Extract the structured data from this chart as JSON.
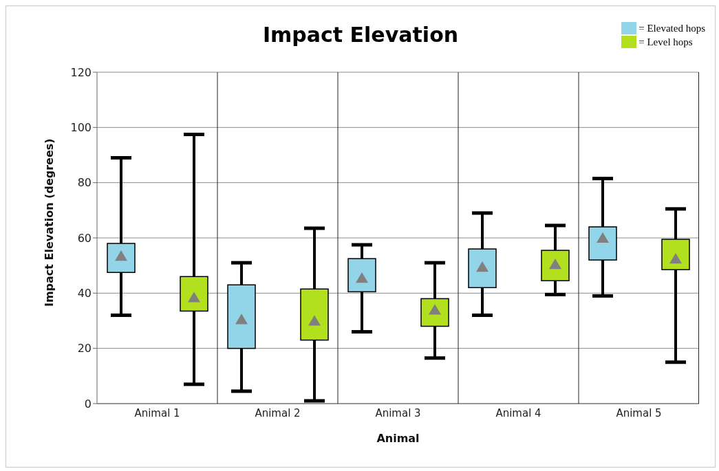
{
  "chart_data": {
    "type": "box",
    "title": "Impact Elevation",
    "xlabel": "Animal",
    "ylabel": "Impact Elevation  (degrees)",
    "categories": [
      "Animal 1",
      "Animal 2",
      "Animal 3",
      "Animal 4",
      "Animal 5"
    ],
    "ylim": [
      0,
      120
    ],
    "yticks": [
      0,
      20,
      40,
      60,
      80,
      100,
      120
    ],
    "grid": "y",
    "legend": "top right",
    "marker": "triangle",
    "series": [
      {
        "name": "= Elevated hops",
        "color": "#92d5e8",
        "boxes": [
          {
            "low": 32,
            "q1": 47.5,
            "median": 53,
            "q3": 58,
            "high": 89
          },
          {
            "low": 4.5,
            "q1": 20,
            "median": 30,
            "q3": 43,
            "high": 51
          },
          {
            "low": 26,
            "q1": 40.5,
            "median": 45,
            "q3": 52.5,
            "high": 57.5
          },
          {
            "low": 32,
            "q1": 42,
            "median": 49,
            "q3": 56,
            "high": 69
          },
          {
            "low": 39,
            "q1": 52,
            "median": 59.5,
            "q3": 64,
            "high": 81.5
          }
        ]
      },
      {
        "name": "= Level hops",
        "color": "#b3e01e",
        "boxes": [
          {
            "low": 7,
            "q1": 33.5,
            "median": 38,
            "q3": 46,
            "high": 97.5
          },
          {
            "low": 1,
            "q1": 23,
            "median": 29.5,
            "q3": 41.5,
            "high": 63.5
          },
          {
            "low": 16.5,
            "q1": 28,
            "median": 33.5,
            "q3": 38,
            "high": 51
          },
          {
            "low": 39.5,
            "q1": 44.5,
            "median": 50,
            "q3": 55.5,
            "high": 64.5
          },
          {
            "low": 15,
            "q1": 48.5,
            "median": 52,
            "q3": 59.5,
            "high": 70.5
          }
        ]
      }
    ]
  }
}
